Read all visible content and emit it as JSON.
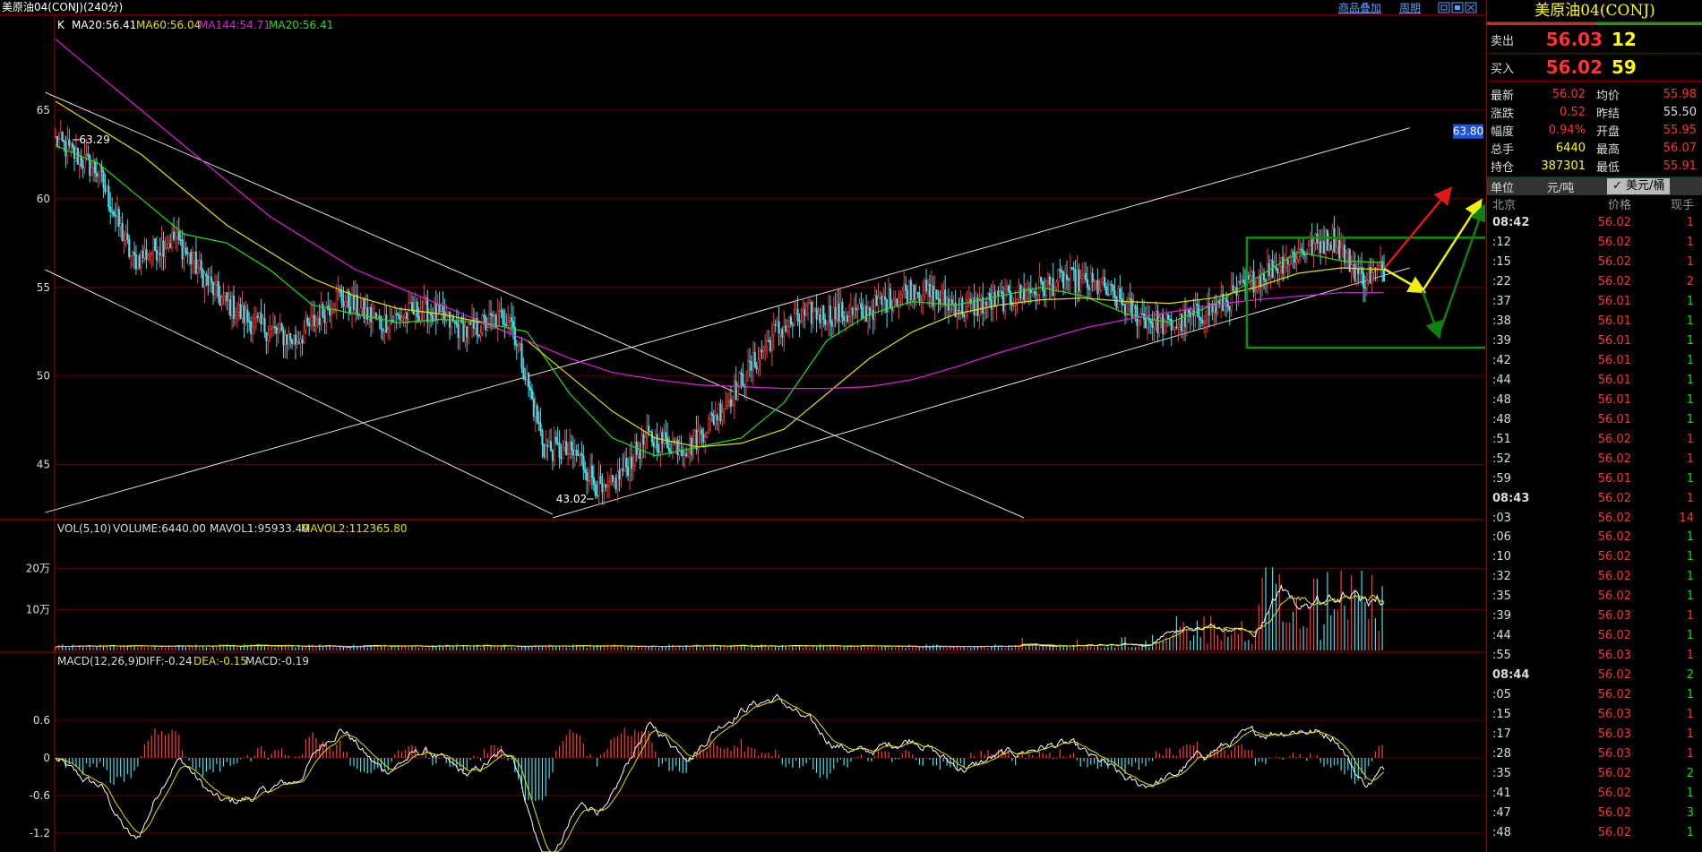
{
  "header": {
    "title": "美原油04(CONJ)(240分)",
    "links": [
      "商品叠加",
      "周期"
    ],
    "window_controls": [
      "restore-icon",
      "maximize-icon",
      "close-icon"
    ]
  },
  "main_panel": {
    "indicator_prefix": "K",
    "indicators": [
      {
        "label": "MA20:56.41",
        "color": "#ffffff"
      },
      {
        "label": "MA60:56.04",
        "color": "#e0e000"
      },
      {
        "label": "MA144:54.71",
        "color": "#e020e0"
      },
      {
        "label": "MA20:56.41",
        "color": "#20e020"
      }
    ],
    "y_ticks": [
      "65",
      "60",
      "55",
      "50",
      "45"
    ],
    "annotations": {
      "high": "63.29",
      "low": "43.02",
      "target": "63.80"
    }
  },
  "volume_panel": {
    "legend": [
      "VOL(5,10)",
      "VOLUME:6440.00",
      "MAVOL1:95933.40",
      "MAVOL2:112365.80"
    ],
    "y_ticks": [
      "20万",
      "10万"
    ]
  },
  "macd_panel": {
    "legend": [
      "MACD(12,26,9)",
      "DIFF:-0.24",
      "DEA:-0.15",
      "MACD:-0.19"
    ],
    "y_ticks": [
      "0.6",
      "0",
      "-0.6",
      "-1.2"
    ]
  },
  "chart_data": {
    "type": "line",
    "title": "美原油04(CONJ)(240分)",
    "ylim": [
      42,
      70
    ],
    "key_points": [
      {
        "i": 0,
        "close": 63.3
      },
      {
        "i": 25,
        "close": 61.5
      },
      {
        "i": 45,
        "close": 56.5
      },
      {
        "i": 70,
        "close": 57.8
      },
      {
        "i": 95,
        "close": 54.5
      },
      {
        "i": 115,
        "close": 53.0
      },
      {
        "i": 140,
        "close": 52.0
      },
      {
        "i": 165,
        "close": 54.5
      },
      {
        "i": 190,
        "close": 53.0
      },
      {
        "i": 215,
        "close": 53.8
      },
      {
        "i": 240,
        "close": 52.5
      },
      {
        "i": 265,
        "close": 53.5
      },
      {
        "i": 285,
        "close": 46.0
      },
      {
        "i": 305,
        "close": 45.5
      },
      {
        "i": 320,
        "close": 43.2
      },
      {
        "i": 345,
        "close": 46.5
      },
      {
        "i": 370,
        "close": 46.0
      },
      {
        "i": 395,
        "close": 49.0
      },
      {
        "i": 420,
        "close": 52.5
      },
      {
        "i": 440,
        "close": 53.5
      },
      {
        "i": 470,
        "close": 53.5
      },
      {
        "i": 500,
        "close": 55.0
      },
      {
        "i": 530,
        "close": 53.8
      },
      {
        "i": 560,
        "close": 54.5
      },
      {
        "i": 590,
        "close": 55.5
      },
      {
        "i": 610,
        "close": 55.0
      },
      {
        "i": 630,
        "close": 53.5
      },
      {
        "i": 650,
        "close": 52.8
      },
      {
        "i": 680,
        "close": 54.0
      },
      {
        "i": 700,
        "close": 55.5
      },
      {
        "i": 725,
        "close": 57.0
      },
      {
        "i": 745,
        "close": 57.8
      },
      {
        "i": 762,
        "close": 55.5
      },
      {
        "i": 775,
        "close": 56.0
      }
    ],
    "series": [
      {
        "name": "MA20",
        "color": "#20e020",
        "values": [
          63.0,
          62.0,
          60.0,
          58.0,
          57.5,
          56.0,
          54.0,
          53.5,
          53.0,
          53.2,
          53.0,
          52.5,
          49.0,
          46.5,
          45.5,
          46.0,
          46.5,
          48.5,
          52.0,
          53.5,
          54.2,
          54.0,
          54.5,
          55.0,
          54.5,
          53.5,
          53.0,
          54.0,
          55.5,
          57.0,
          56.5,
          56.4
        ]
      },
      {
        "name": "MA60",
        "color": "#e0e000",
        "values": [
          65.5,
          64.0,
          62.5,
          60.5,
          58.5,
          57.0,
          55.5,
          54.5,
          53.8,
          53.5,
          53.0,
          52.0,
          50.0,
          48.0,
          46.5,
          46.0,
          46.2,
          47.0,
          49.0,
          51.0,
          52.5,
          53.5,
          54.0,
          54.3,
          54.4,
          54.2,
          54.1,
          54.4,
          55.0,
          55.8,
          56.1,
          56.0
        ]
      },
      {
        "name": "MA144",
        "color": "#e020e0",
        "values": [
          69.0,
          67.0,
          65.0,
          63.0,
          61.0,
          59.0,
          57.5,
          56.0,
          55.0,
          54.0,
          53.0,
          52.0,
          51.0,
          50.2,
          49.8,
          49.5,
          49.4,
          49.3,
          49.3,
          49.4,
          49.8,
          50.5,
          51.3,
          52.0,
          52.7,
          53.2,
          53.6,
          54.0,
          54.3,
          54.5,
          54.7,
          54.7
        ]
      }
    ],
    "volume_ylim": [
      0,
      280000
    ],
    "macd_ylim": [
      -1.5,
      1.4
    ]
  },
  "quote_panel": {
    "title": "美原油04(CONJ)",
    "sell": {
      "label": "卖出",
      "price": "56.03",
      "qty": "12"
    },
    "buy": {
      "label": "买入",
      "price": "56.02",
      "qty": "59"
    },
    "stats": [
      {
        "k": "最新",
        "v": "56.02",
        "vc": "red",
        "k2": "均价",
        "v2": "55.98",
        "v2c": "red"
      },
      {
        "k": "涨跌",
        "v": "0.52",
        "vc": "red",
        "k2": "昨结",
        "v2": "55.50",
        "v2c": "wht"
      },
      {
        "k": "幅度",
        "v": "0.94%",
        "vc": "red",
        "k2": "开盘",
        "v2": "55.95",
        "v2c": "red"
      },
      {
        "k": "总手",
        "v": "6440",
        "vc": "yel",
        "k2": "最高",
        "v2": "56.07",
        "v2c": "red"
      },
      {
        "k": "持仓",
        "v": "387301",
        "vc": "yel",
        "k2": "最低",
        "v2": "55.91",
        "v2c": "red"
      }
    ],
    "unit_label": "单位",
    "unit1": "元/吨",
    "unit2": "✓ 美元/桶",
    "tick_headers": [
      "北京",
      "价格",
      "现手"
    ],
    "ticks": [
      {
        "t": "08:42",
        "p": "56.02",
        "v": "1",
        "c": "r1",
        "b": true
      },
      {
        "t": ":12",
        "p": "56.02",
        "v": "1",
        "c": "r1"
      },
      {
        "t": ":15",
        "p": "56.02",
        "v": "1",
        "c": "r1"
      },
      {
        "t": ":22",
        "p": "56.02",
        "v": "2",
        "c": "r1"
      },
      {
        "t": ":37",
        "p": "56.01",
        "v": "1",
        "c": "g1"
      },
      {
        "t": ":38",
        "p": "56.01",
        "v": "1",
        "c": "g1"
      },
      {
        "t": ":39",
        "p": "56.01",
        "v": "1",
        "c": "g1"
      },
      {
        "t": ":42",
        "p": "56.01",
        "v": "1",
        "c": "g1"
      },
      {
        "t": ":44",
        "p": "56.01",
        "v": "1",
        "c": "g1"
      },
      {
        "t": ":48",
        "p": "56.01",
        "v": "1",
        "c": "g1"
      },
      {
        "t": ":48",
        "p": "56.01",
        "v": "1",
        "c": "g1"
      },
      {
        "t": ":51",
        "p": "56.02",
        "v": "1",
        "c": "r1"
      },
      {
        "t": ":52",
        "p": "56.02",
        "v": "1",
        "c": "r1"
      },
      {
        "t": ":59",
        "p": "56.01",
        "v": "1",
        "c": "g1"
      },
      {
        "t": "08:43",
        "p": "56.02",
        "v": "1",
        "c": "r1",
        "b": true
      },
      {
        "t": ":03",
        "p": "56.02",
        "v": "14",
        "c": "r1"
      },
      {
        "t": ":06",
        "p": "56.02",
        "v": "1",
        "c": "g1"
      },
      {
        "t": ":10",
        "p": "56.02",
        "v": "1",
        "c": "g1"
      },
      {
        "t": ":32",
        "p": "56.02",
        "v": "1",
        "c": "g1"
      },
      {
        "t": ":35",
        "p": "56.02",
        "v": "1",
        "c": "g1"
      },
      {
        "t": ":39",
        "p": "56.03",
        "v": "1",
        "c": "r1"
      },
      {
        "t": ":44",
        "p": "56.02",
        "v": "1",
        "c": "g1"
      },
      {
        "t": ":55",
        "p": "56.03",
        "v": "1",
        "c": "r1"
      },
      {
        "t": "08:44",
        "p": "56.02",
        "v": "2",
        "c": "g1",
        "b": true
      },
      {
        "t": ":05",
        "p": "56.02",
        "v": "1",
        "c": "g1"
      },
      {
        "t": ":15",
        "p": "56.03",
        "v": "1",
        "c": "r1"
      },
      {
        "t": ":17",
        "p": "56.03",
        "v": "1",
        "c": "r1"
      },
      {
        "t": ":28",
        "p": "56.03",
        "v": "1",
        "c": "r1"
      },
      {
        "t": ":35",
        "p": "56.02",
        "v": "2",
        "c": "g1"
      },
      {
        "t": ":41",
        "p": "56.02",
        "v": "1",
        "c": "g1"
      },
      {
        "t": ":47",
        "p": "56.02",
        "v": "3",
        "c": "g1"
      },
      {
        "t": ":48",
        "p": "56.02",
        "v": "1",
        "c": "g1"
      }
    ]
  }
}
